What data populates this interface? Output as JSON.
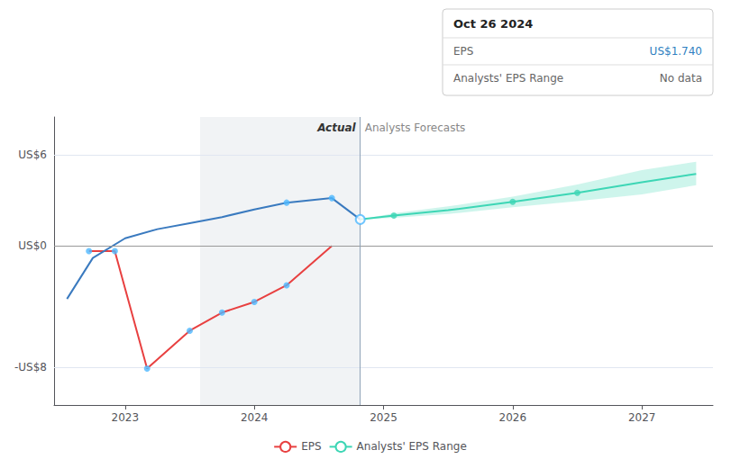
{
  "chart_data": {
    "type": "line",
    "grid": true,
    "legend": "bottom",
    "xlim": [
      2022.45,
      2027.55
    ],
    "xticks": [
      2023,
      2024,
      2025,
      2026,
      2027
    ],
    "ylim": [
      -10.5,
      8.5
    ],
    "yticks": [
      {
        "value": -8,
        "label": "-US$8"
      },
      {
        "value": 0,
        "label": "US$0"
      },
      {
        "value": 6,
        "label": "US$6"
      }
    ],
    "highlight": [
      2023.58,
      2024.82
    ],
    "divider": {
      "x": 2024.82,
      "left_label": "Actual",
      "right_label": "Analysts Forecasts"
    },
    "tooltip": {
      "title": "Oct 26 2024",
      "rows": [
        [
          "EPS",
          "US$1.740"
        ],
        [
          "Analysts' EPS Range",
          "No data"
        ]
      ]
    },
    "legend_entries": [
      "EPS",
      "Analysts' EPS Range"
    ],
    "series": [
      {
        "name": "EPS",
        "type": "line",
        "color": "#e84040",
        "x": [
          2022.72,
          2022.92,
          2023.17,
          2023.5,
          2023.75,
          2024.0,
          2024.25,
          2024.6
        ],
        "values": [
          -0.35,
          -0.35,
          -8.1,
          -5.6,
          -4.4,
          -3.7,
          -2.6,
          0.0
        ]
      },
      {
        "type": "line",
        "color": "#3a7abf",
        "x": [
          2022.55,
          2022.75,
          2023.0,
          2023.25,
          2023.5,
          2023.75,
          2024.0,
          2024.25,
          2024.6,
          2024.82
        ],
        "values": [
          -3.5,
          -0.8,
          0.5,
          1.1,
          1.5,
          1.9,
          2.4,
          2.85,
          3.15,
          1.74
        ]
      },
      {
        "name": "Analysts' EPS Range",
        "type": "line",
        "color": "#3dd6b5",
        "x": [
          2024.82,
          2025.08,
          2025.5,
          2026.0,
          2026.5,
          2027.0,
          2027.42
        ],
        "values": [
          1.74,
          2.0,
          2.35,
          2.9,
          3.5,
          4.2,
          4.75
        ],
        "lower": [
          1.74,
          1.85,
          2.1,
          2.55,
          2.95,
          3.4,
          4.0
        ],
        "upper": [
          1.74,
          2.15,
          2.6,
          3.25,
          4.05,
          5.0,
          5.55
        ]
      },
      {
        "type": "scatter",
        "color": "#4db8ff",
        "x": [
          2022.72,
          2022.92,
          2023.17,
          2023.5,
          2023.75,
          2024.0,
          2024.25
        ],
        "values": [
          -0.35,
          -0.35,
          -8.1,
          -5.6,
          -4.4,
          -3.7,
          -2.6
        ]
      },
      {
        "type": "scatter",
        "color": "#4db8ff",
        "x": [
          2024.25,
          2024.6
        ],
        "values": [
          2.85,
          3.15
        ]
      },
      {
        "type": "scatter",
        "marker": "open_circle",
        "color": "#4db8ff",
        "x": [
          2024.82
        ],
        "values": [
          1.74
        ]
      },
      {
        "type": "scatter",
        "color": "#3dd6b5",
        "x": [
          2025.08,
          2026.0,
          2026.5
        ],
        "values": [
          2.0,
          2.9,
          3.5
        ]
      }
    ]
  }
}
